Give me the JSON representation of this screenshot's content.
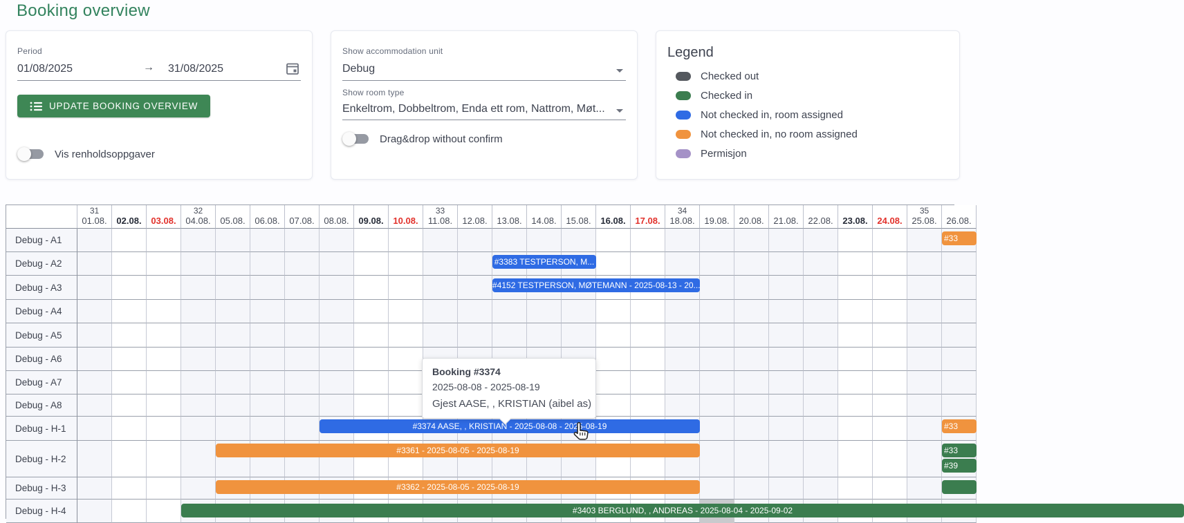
{
  "page": {
    "title": "Booking overview"
  },
  "period_card": {
    "label": "Period",
    "from": "01/08/2025",
    "arrow": "→",
    "to": "31/08/2025",
    "button_label": "UPDATE BOOKING OVERVIEW",
    "toggle_label": "Vis renholdsoppgaver",
    "toggle_state": "off"
  },
  "filters_card": {
    "unit_label": "Show accommodation unit",
    "unit_value": "Debug",
    "room_type_label": "Show room type",
    "room_type_value": "Enkeltrom, Dobbeltrom, Enda ett rom, Nattrom, Møt...",
    "toggle_label": "Drag&drop without confirm",
    "toggle_state": "off"
  },
  "legend_card": {
    "title": "Legend",
    "items": [
      {
        "label": "Checked out",
        "color": "#54585e"
      },
      {
        "label": "Checked in",
        "color": "#3b7d4f"
      },
      {
        "label": "Not checked in, room assigned",
        "color": "#2f6be4"
      },
      {
        "label": "Not checked in, no room assigned",
        "color": "#f0933e"
      },
      {
        "label": "Permisjon",
        "color": "#a592c7"
      }
    ]
  },
  "grid": {
    "days": [
      {
        "week": "31",
        "label": "01.08.",
        "kind": "weekday"
      },
      {
        "week": "",
        "label": "02.08.",
        "kind": "saturday"
      },
      {
        "week": "",
        "label": "03.08.",
        "kind": "sunday"
      },
      {
        "week": "32",
        "label": "04.08.",
        "kind": "weekday"
      },
      {
        "week": "",
        "label": "05.08.",
        "kind": "weekday"
      },
      {
        "week": "",
        "label": "06.08.",
        "kind": "weekday"
      },
      {
        "week": "",
        "label": "07.08.",
        "kind": "weekday"
      },
      {
        "week": "",
        "label": "08.08.",
        "kind": "weekday"
      },
      {
        "week": "",
        "label": "09.08.",
        "kind": "saturday"
      },
      {
        "week": "",
        "label": "10.08.",
        "kind": "sunday"
      },
      {
        "week": "33",
        "label": "11.08.",
        "kind": "weekday"
      },
      {
        "week": "",
        "label": "12.08.",
        "kind": "weekday"
      },
      {
        "week": "",
        "label": "13.08.",
        "kind": "weekday"
      },
      {
        "week": "",
        "label": "14.08.",
        "kind": "weekday"
      },
      {
        "week": "",
        "label": "15.08.",
        "kind": "weekday"
      },
      {
        "week": "",
        "label": "16.08.",
        "kind": "saturday"
      },
      {
        "week": "",
        "label": "17.08.",
        "kind": "sunday"
      },
      {
        "week": "34",
        "label": "18.08.",
        "kind": "weekday"
      },
      {
        "week": "",
        "label": "19.08.",
        "kind": "weekday"
      },
      {
        "week": "",
        "label": "20.08.",
        "kind": "weekday"
      },
      {
        "week": "",
        "label": "21.08.",
        "kind": "weekday"
      },
      {
        "week": "",
        "label": "22.08.",
        "kind": "weekday"
      },
      {
        "week": "",
        "label": "23.08.",
        "kind": "saturday"
      },
      {
        "week": "",
        "label": "24.08.",
        "kind": "sunday"
      },
      {
        "week": "35",
        "label": "25.08.",
        "kind": "weekday"
      },
      {
        "week": "",
        "label": "26.08.",
        "kind": "weekday"
      }
    ],
    "rows": [
      {
        "label": "Debug - A1",
        "height": 34
      },
      {
        "label": "Debug - A2",
        "height": 34
      },
      {
        "label": "Debug - A3",
        "height": 35
      },
      {
        "label": "Debug - A4",
        "height": 34
      },
      {
        "label": "Debug - A5",
        "height": 35
      },
      {
        "label": "Debug - A6",
        "height": 34
      },
      {
        "label": "Debug - A7",
        "height": 34
      },
      {
        "label": "Debug - A8",
        "height": 32
      },
      {
        "label": "Debug - H-1",
        "height": 35
      },
      {
        "label": "Debug - H-2",
        "height": 53
      },
      {
        "label": "Debug - H-3",
        "height": 32
      },
      {
        "label": "Debug - H-4",
        "height": 34
      }
    ],
    "bars": [
      {
        "row": 0,
        "day": 26,
        "span": 1,
        "color": "orange",
        "text": "#33",
        "lane": 0,
        "align": "left"
      },
      {
        "row": 1,
        "day": 13,
        "span": 3,
        "color": "blue",
        "text": "#3383 TESTPERSON, M...",
        "lane": 0,
        "align": "center"
      },
      {
        "row": 2,
        "day": 13,
        "span": 6,
        "color": "blue",
        "text": "#4152 TESTPERSON, MØTEMANN - 2025-08-13 - 20...",
        "lane": 0,
        "align": "center"
      },
      {
        "row": 8,
        "day": 8,
        "span": 11,
        "color": "blue",
        "text": "#3374 AASE, , KRISTIAN - 2025-08-08 - 2025-08-19",
        "lane": 0,
        "align": "center"
      },
      {
        "row": 8,
        "day": 26,
        "span": 1,
        "color": "orange",
        "text": "#33",
        "lane": 0,
        "align": "left"
      },
      {
        "row": 9,
        "day": 5,
        "span": 14,
        "color": "orange",
        "text": "#3361 - 2025-08-05 - 2025-08-19",
        "lane": 0,
        "align": "center"
      },
      {
        "row": 9,
        "day": 26,
        "span": 1,
        "color": "green",
        "text": "#33",
        "lane": 0,
        "align": "left"
      },
      {
        "row": 9,
        "day": 26,
        "span": 1,
        "color": "green",
        "text": "#39",
        "lane": 1,
        "align": "left"
      },
      {
        "row": 10,
        "day": 5,
        "span": 14,
        "color": "orange",
        "text": "#3362 - 2025-08-05 - 2025-08-19",
        "lane": 0,
        "align": "center"
      },
      {
        "row": 10,
        "day": 26,
        "span": 1,
        "color": "green",
        "text": "",
        "lane": 0,
        "align": "left"
      },
      {
        "row": 11,
        "day": 4,
        "span": 29,
        "color": "green",
        "text": "#3403 BERGLUND, , ANDREAS - 2025-08-04 - 2025-09-02",
        "lane": 0,
        "align": "center"
      }
    ],
    "column_highlight": {
      "row": 11,
      "day": 19,
      "color": "#c9cacd"
    }
  },
  "tooltip": {
    "title": "Booking #3374",
    "dates": "2025-08-08 - 2025-08-19",
    "guest": "Gjest AASE, , KRISTIAN (aibel as)"
  },
  "colors": {
    "blue": "#2f6be4",
    "orange": "#f0933e",
    "green": "#3b7d4f",
    "checked_out": "#54585e",
    "permisjon": "#a592c7"
  }
}
